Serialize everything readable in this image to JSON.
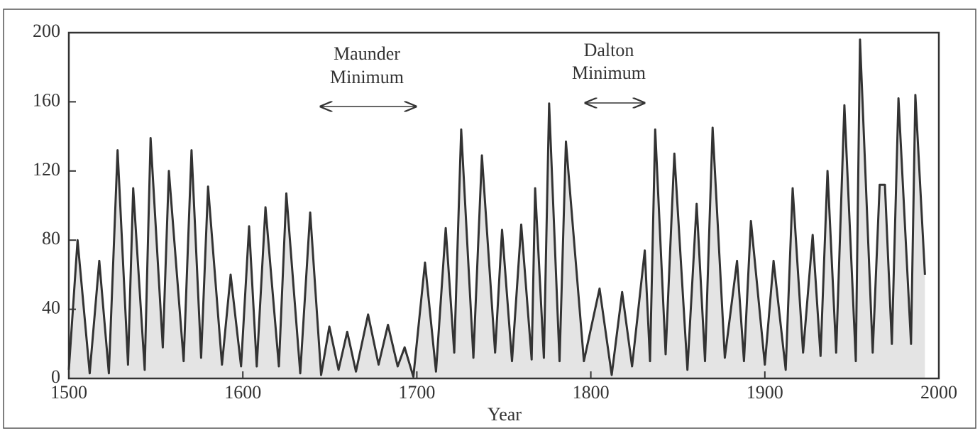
{
  "chart_data": {
    "type": "line",
    "xlabel": "Year",
    "color": "#333333",
    "fill": "#e4e4e4",
    "annotations": [
      {
        "lines": [
          "Maunder",
          "Minimum"
        ]
      },
      {
        "lines": [
          "Dalton",
          "Minimum"
        ]
      }
    ],
    "x": [
      1500,
      1505,
      1512,
      1517.5,
      1523,
      1528,
      1534,
      1537,
      1543.6,
      1547,
      1554,
      1557.5,
      1566,
      1570.5,
      1576,
      1580,
      1588,
      1593,
      1599,
      1603.6,
      1608,
      1613,
      1620.7,
      1625,
      1633,
      1638.7,
      1645,
      1649.7,
      1655,
      1660,
      1665,
      1672,
      1678,
      1683.4,
      1689,
      1693,
      1698,
      1704.7,
      1711,
      1716.6,
      1721.5,
      1725.5,
      1732.5,
      1737.4,
      1745,
      1749,
      1754.7,
      1760,
      1766,
      1768,
      1773,
      1776,
      1782,
      1785.7,
      1796,
      1805,
      1812,
      1818,
      1823.7,
      1831,
      1834,
      1837,
      1843,
      1848,
      1855.5,
      1860.8,
      1865.6,
      1870,
      1877,
      1884,
      1888,
      1892,
      1900,
      1905,
      1912,
      1916,
      1922,
      1927.5,
      1932,
      1936,
      1941,
      1945.7,
      1952.3,
      1954.7,
      1962,
      1966,
      1969,
      1973,
      1976.8,
      1984,
      1986.5,
      1992
    ],
    "values": [
      5,
      80,
      3,
      68,
      3,
      132,
      8,
      110,
      5,
      139,
      18,
      120,
      10,
      132,
      12,
      111,
      8,
      60,
      7,
      88,
      7,
      99,
      7,
      107,
      3,
      96,
      2,
      30,
      5,
      27,
      4,
      37,
      8,
      31,
      7,
      18,
      1,
      67,
      4,
      87,
      15,
      144,
      12,
      129,
      15,
      86,
      10,
      89,
      11,
      110,
      12,
      159,
      10,
      137,
      10,
      52,
      2,
      50,
      7,
      74,
      10,
      144,
      14,
      130,
      5,
      101,
      10,
      145,
      12,
      68,
      10,
      91,
      8,
      68,
      5,
      110,
      15,
      83,
      13,
      120,
      15,
      158,
      10,
      196,
      15,
      112,
      112,
      20,
      162,
      20,
      164,
      60
    ],
    "xlim": [
      1500,
      2000
    ],
    "xticks": [
      1500,
      1600,
      1700,
      1800,
      1900,
      2000
    ],
    "ylim": [
      0,
      200
    ],
    "yticks": [
      0,
      40,
      80,
      120,
      160,
      200
    ]
  }
}
